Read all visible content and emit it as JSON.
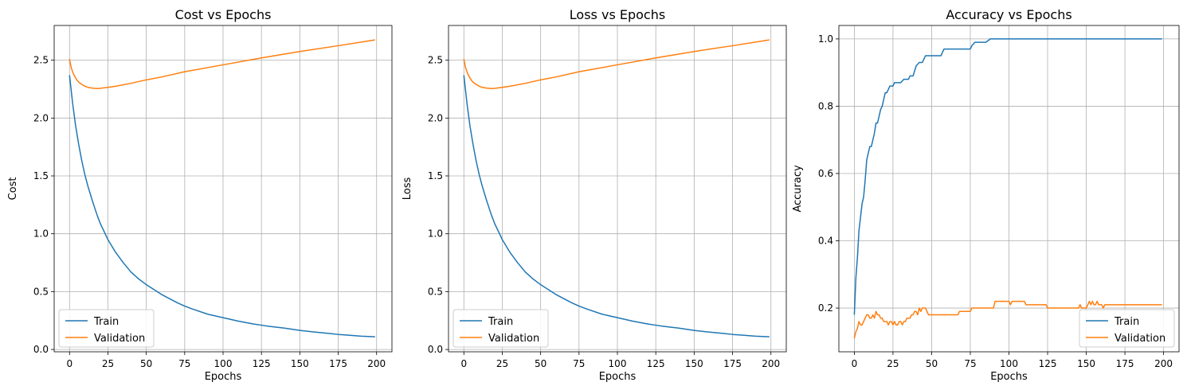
{
  "chart_data": [
    {
      "type": "line",
      "title": "Cost vs Epochs",
      "xlabel": "Epochs",
      "ylabel": "Cost",
      "xlim": [
        -10,
        210
      ],
      "ylim": [
        -0.02,
        2.8
      ],
      "xticks": [
        0,
        25,
        50,
        75,
        100,
        125,
        150,
        175,
        200
      ],
      "yticks": [
        0.0,
        0.5,
        1.0,
        1.5,
        2.0,
        2.5
      ],
      "ytick_labels": [
        "0.0",
        "0.5",
        "1.0",
        "1.5",
        "2.0",
        "2.5"
      ],
      "grid": true,
      "legend_position": "lower-left",
      "series": [
        {
          "name": "Train",
          "color": "#1f77b4",
          "x": [
            0,
            2,
            4,
            6,
            8,
            10,
            12,
            15,
            18,
            20,
            25,
            30,
            35,
            40,
            45,
            50,
            60,
            70,
            75,
            80,
            90,
            100,
            110,
            120,
            125,
            130,
            140,
            150,
            160,
            170,
            175,
            180,
            190,
            199
          ],
          "y": [
            2.37,
            2.13,
            1.93,
            1.77,
            1.63,
            1.51,
            1.41,
            1.28,
            1.16,
            1.09,
            0.95,
            0.84,
            0.75,
            0.67,
            0.61,
            0.56,
            0.475,
            0.405,
            0.375,
            0.35,
            0.305,
            0.275,
            0.245,
            0.22,
            0.21,
            0.2,
            0.185,
            0.165,
            0.15,
            0.137,
            0.13,
            0.125,
            0.115,
            0.11
          ]
        },
        {
          "name": "Validation",
          "color": "#ff7f0e",
          "x": [
            0,
            1,
            2,
            3,
            4,
            5,
            6,
            8,
            10,
            12,
            15,
            18,
            20,
            25,
            30,
            40,
            50,
            60,
            75,
            100,
            125,
            150,
            175,
            199
          ],
          "y": [
            2.51,
            2.44,
            2.4,
            2.37,
            2.345,
            2.325,
            2.31,
            2.29,
            2.275,
            2.265,
            2.258,
            2.255,
            2.257,
            2.265,
            2.275,
            2.3,
            2.33,
            2.355,
            2.4,
            2.46,
            2.52,
            2.575,
            2.625,
            2.675
          ]
        }
      ]
    },
    {
      "type": "line",
      "title": "Loss vs Epochs",
      "xlabel": "Epochs",
      "ylabel": "Loss",
      "xlim": [
        -10,
        210
      ],
      "ylim": [
        -0.02,
        2.8
      ],
      "xticks": [
        0,
        25,
        50,
        75,
        100,
        125,
        150,
        175,
        200
      ],
      "yticks": [
        0.0,
        0.5,
        1.0,
        1.5,
        2.0,
        2.5
      ],
      "ytick_labels": [
        "0.0",
        "0.5",
        "1.0",
        "1.5",
        "2.0",
        "2.5"
      ],
      "grid": true,
      "legend_position": "lower-left",
      "series": [
        {
          "name": "Train",
          "color": "#1f77b4",
          "x": [
            0,
            2,
            4,
            6,
            8,
            10,
            12,
            15,
            18,
            20,
            25,
            30,
            35,
            40,
            45,
            50,
            60,
            70,
            75,
            80,
            90,
            100,
            110,
            120,
            125,
            130,
            140,
            150,
            160,
            170,
            175,
            180,
            190,
            199
          ],
          "y": [
            2.37,
            2.13,
            1.93,
            1.77,
            1.63,
            1.51,
            1.41,
            1.28,
            1.16,
            1.09,
            0.95,
            0.84,
            0.75,
            0.67,
            0.61,
            0.56,
            0.475,
            0.405,
            0.375,
            0.35,
            0.305,
            0.275,
            0.245,
            0.22,
            0.21,
            0.2,
            0.185,
            0.165,
            0.15,
            0.137,
            0.13,
            0.125,
            0.115,
            0.11
          ]
        },
        {
          "name": "Validation",
          "color": "#ff7f0e",
          "x": [
            0,
            1,
            2,
            3,
            4,
            5,
            6,
            8,
            10,
            12,
            15,
            18,
            20,
            25,
            30,
            40,
            50,
            60,
            75,
            100,
            125,
            150,
            175,
            199
          ],
          "y": [
            2.51,
            2.44,
            2.4,
            2.37,
            2.345,
            2.325,
            2.31,
            2.29,
            2.275,
            2.265,
            2.258,
            2.255,
            2.257,
            2.265,
            2.275,
            2.3,
            2.33,
            2.355,
            2.4,
            2.46,
            2.52,
            2.575,
            2.625,
            2.675
          ]
        }
      ]
    },
    {
      "type": "line",
      "title": "Accuracy vs Epochs",
      "xlabel": "Epochs",
      "ylabel": "Accuracy",
      "xlim": [
        -10,
        210
      ],
      "ylim": [
        0.07,
        1.04
      ],
      "xticks": [
        0,
        25,
        50,
        75,
        100,
        125,
        150,
        175,
        200
      ],
      "yticks": [
        0.2,
        0.4,
        0.6,
        0.8,
        1.0
      ],
      "ytick_labels": [
        "0.2",
        "0.4",
        "0.6",
        "0.8",
        "1.0"
      ],
      "grid": true,
      "legend_position": "lower-right",
      "series": [
        {
          "name": "Train",
          "color": "#1f77b4",
          "x": [
            0,
            1,
            2,
            3,
            4,
            5,
            6,
            7,
            8,
            9,
            10,
            11,
            12,
            13,
            14,
            15,
            16,
            17,
            18,
            19,
            20,
            21,
            22,
            23,
            24,
            25,
            26,
            27,
            28,
            30,
            32,
            33,
            35,
            36,
            38,
            40,
            42,
            44,
            45,
            46,
            48,
            50,
            52,
            55,
            56,
            58,
            60,
            62,
            65,
            70,
            75,
            76,
            78,
            80,
            85,
            88,
            90,
            100,
            110,
            120,
            150,
            199
          ],
          "y": [
            0.18,
            0.29,
            0.35,
            0.43,
            0.47,
            0.51,
            0.53,
            0.58,
            0.64,
            0.66,
            0.68,
            0.68,
            0.7,
            0.72,
            0.75,
            0.75,
            0.77,
            0.79,
            0.8,
            0.82,
            0.84,
            0.84,
            0.85,
            0.86,
            0.86,
            0.86,
            0.87,
            0.87,
            0.87,
            0.87,
            0.88,
            0.88,
            0.88,
            0.89,
            0.89,
            0.92,
            0.93,
            0.93,
            0.94,
            0.95,
            0.95,
            0.95,
            0.95,
            0.95,
            0.95,
            0.97,
            0.97,
            0.97,
            0.97,
            0.97,
            0.97,
            0.98,
            0.99,
            0.99,
            0.99,
            1.0,
            1.0,
            1.0,
            1.0,
            1.0,
            1.0,
            1.0
          ]
        },
        {
          "name": "Validation",
          "color": "#ff7f0e",
          "x": [
            0,
            1,
            2,
            3,
            4,
            5,
            6,
            7,
            8,
            9,
            10,
            11,
            12,
            13,
            14,
            15,
            16,
            17,
            18,
            19,
            20,
            21,
            22,
            23,
            24,
            25,
            26,
            27,
            28,
            29,
            30,
            31,
            32,
            33,
            34,
            35,
            36,
            37,
            38,
            39,
            40,
            41,
            42,
            43,
            44,
            45,
            46,
            47,
            48,
            50,
            55,
            60,
            65,
            67,
            68,
            70,
            75,
            76,
            78,
            80,
            85,
            90,
            91,
            95,
            100,
            101,
            102,
            105,
            110,
            111,
            115,
            120,
            124,
            125,
            130,
            140,
            145,
            146,
            147,
            148,
            150,
            151,
            152,
            153,
            154,
            155,
            156,
            157,
            158,
            160,
            161,
            162,
            163,
            165,
            170,
            180,
            190,
            199
          ],
          "y": [
            0.11,
            0.13,
            0.14,
            0.16,
            0.15,
            0.15,
            0.16,
            0.17,
            0.18,
            0.18,
            0.17,
            0.17,
            0.18,
            0.17,
            0.19,
            0.18,
            0.18,
            0.17,
            0.17,
            0.16,
            0.16,
            0.16,
            0.15,
            0.16,
            0.16,
            0.15,
            0.16,
            0.15,
            0.15,
            0.16,
            0.16,
            0.15,
            0.16,
            0.16,
            0.17,
            0.17,
            0.17,
            0.18,
            0.18,
            0.19,
            0.19,
            0.18,
            0.2,
            0.19,
            0.2,
            0.2,
            0.2,
            0.19,
            0.18,
            0.18,
            0.18,
            0.18,
            0.18,
            0.18,
            0.19,
            0.19,
            0.19,
            0.2,
            0.2,
            0.2,
            0.2,
            0.2,
            0.22,
            0.22,
            0.22,
            0.21,
            0.22,
            0.22,
            0.22,
            0.21,
            0.21,
            0.21,
            0.21,
            0.2,
            0.2,
            0.2,
            0.2,
            0.21,
            0.2,
            0.2,
            0.2,
            0.21,
            0.22,
            0.21,
            0.22,
            0.21,
            0.21,
            0.22,
            0.21,
            0.21,
            0.2,
            0.21,
            0.21,
            0.21,
            0.21,
            0.21,
            0.21,
            0.21
          ]
        }
      ]
    }
  ]
}
